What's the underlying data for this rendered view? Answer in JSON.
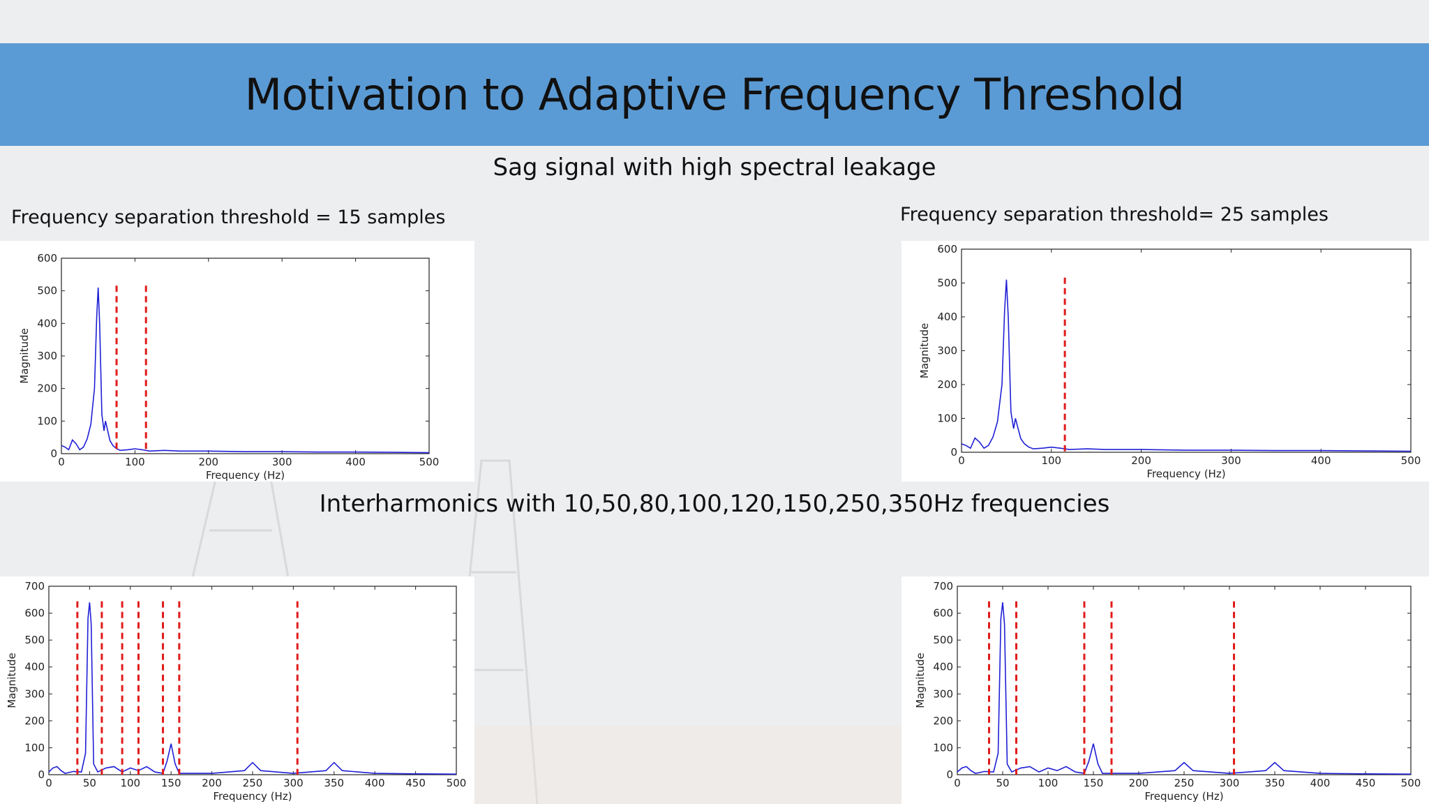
{
  "title": "Motivation to Adaptive Frequency Threshold",
  "section1_heading": "Sag signal with high spectral leakage",
  "section2_heading": "Interharmonics with 10,50,80,100,120,150,250,350Hz frequencies",
  "threshold_left": "Frequency separation threshold = 15 samples",
  "threshold_right": "Frequency separation threshold= 25 samples",
  "colors": {
    "band": "#5b9bd5",
    "spectrum": "#1f1fd6",
    "threshold": "#e01b1b"
  },
  "chart_data": [
    {
      "type": "line",
      "xlabel": "Frequency (Hz)",
      "ylabel": "Magnitude",
      "xlim": [
        0,
        500
      ],
      "ylim": [
        0,
        600
      ],
      "xticks": [
        0,
        100,
        200,
        300,
        400,
        500
      ],
      "yticks": [
        0,
        100,
        200,
        300,
        400,
        500,
        600
      ],
      "grid": false,
      "series": [
        {
          "values": [
            [
              0,
              25
            ],
            [
              5,
              20
            ],
            [
              10,
              12
            ],
            [
              15,
              42
            ],
            [
              20,
              30
            ],
            [
              25,
              12
            ],
            [
              30,
              20
            ],
            [
              35,
              45
            ],
            [
              40,
              90
            ],
            [
              45,
              200
            ],
            [
              48,
              420
            ],
            [
              50,
              510
            ],
            [
              52,
              400
            ],
            [
              55,
              120
            ],
            [
              58,
              70
            ],
            [
              60,
              100
            ],
            [
              63,
              70
            ],
            [
              66,
              40
            ],
            [
              70,
              25
            ],
            [
              75,
              15
            ],
            [
              80,
              10
            ],
            [
              90,
              12
            ],
            [
              100,
              15
            ],
            [
              110,
              12
            ],
            [
              120,
              8
            ],
            [
              140,
              10
            ],
            [
              160,
              8
            ],
            [
              200,
              8
            ],
            [
              250,
              6
            ],
            [
              300,
              6
            ],
            [
              350,
              5
            ],
            [
              400,
              5
            ],
            [
              450,
              4
            ],
            [
              500,
              3
            ]
          ]
        }
      ],
      "thresholds": [
        75,
        115
      ]
    },
    {
      "type": "line",
      "xlabel": "Frequency (Hz)",
      "ylabel": "Magnitude",
      "xlim": [
        0,
        500
      ],
      "ylim": [
        0,
        600
      ],
      "xticks": [
        0,
        100,
        200,
        300,
        400,
        500
      ],
      "yticks": [
        0,
        100,
        200,
        300,
        400,
        500,
        600
      ],
      "grid": false,
      "series": [
        {
          "values": [
            [
              0,
              25
            ],
            [
              5,
              20
            ],
            [
              10,
              12
            ],
            [
              15,
              42
            ],
            [
              20,
              30
            ],
            [
              25,
              12
            ],
            [
              30,
              20
            ],
            [
              35,
              45
            ],
            [
              40,
              90
            ],
            [
              45,
              200
            ],
            [
              48,
              420
            ],
            [
              50,
              510
            ],
            [
              52,
              400
            ],
            [
              55,
              120
            ],
            [
              58,
              70
            ],
            [
              60,
              100
            ],
            [
              63,
              70
            ],
            [
              66,
              40
            ],
            [
              70,
              25
            ],
            [
              75,
              15
            ],
            [
              80,
              10
            ],
            [
              90,
              12
            ],
            [
              100,
              15
            ],
            [
              110,
              12
            ],
            [
              120,
              8
            ],
            [
              140,
              10
            ],
            [
              160,
              8
            ],
            [
              200,
              8
            ],
            [
              250,
              6
            ],
            [
              300,
              6
            ],
            [
              350,
              5
            ],
            [
              400,
              5
            ],
            [
              450,
              4
            ],
            [
              500,
              3
            ]
          ]
        }
      ],
      "thresholds": [
        115
      ]
    },
    {
      "type": "line",
      "xlabel": "Frequency (Hz)",
      "ylabel": "Magnitude",
      "xlim": [
        0,
        500
      ],
      "ylim": [
        0,
        700
      ],
      "xticks": [
        0,
        50,
        100,
        150,
        200,
        250,
        300,
        350,
        400,
        450,
        500
      ],
      "yticks": [
        0,
        100,
        200,
        300,
        400,
        500,
        600,
        700
      ],
      "grid": false,
      "series": [
        {
          "values": [
            [
              0,
              10
            ],
            [
              5,
              25
            ],
            [
              10,
              30
            ],
            [
              15,
              15
            ],
            [
              20,
              5
            ],
            [
              30,
              12
            ],
            [
              40,
              10
            ],
            [
              45,
              80
            ],
            [
              48,
              580
            ],
            [
              50,
              640
            ],
            [
              52,
              560
            ],
            [
              55,
              40
            ],
            [
              60,
              10
            ],
            [
              70,
              25
            ],
            [
              80,
              30
            ],
            [
              90,
              10
            ],
            [
              100,
              25
            ],
            [
              110,
              15
            ],
            [
              120,
              30
            ],
            [
              130,
              10
            ],
            [
              140,
              5
            ],
            [
              145,
              50
            ],
            [
              150,
              115
            ],
            [
              155,
              40
            ],
            [
              160,
              5
            ],
            [
              200,
              5
            ],
            [
              240,
              15
            ],
            [
              250,
              45
            ],
            [
              260,
              15
            ],
            [
              300,
              5
            ],
            [
              340,
              15
            ],
            [
              350,
              45
            ],
            [
              360,
              15
            ],
            [
              400,
              5
            ],
            [
              450,
              3
            ],
            [
              500,
              2
            ]
          ]
        }
      ],
      "thresholds": [
        35,
        65,
        90,
        110,
        140,
        160,
        305
      ]
    },
    {
      "type": "line",
      "xlabel": "Frequency (Hz)",
      "ylabel": "Magnitude",
      "xlim": [
        0,
        500
      ],
      "ylim": [
        0,
        700
      ],
      "xticks": [
        0,
        50,
        100,
        150,
        200,
        250,
        300,
        350,
        400,
        450,
        500
      ],
      "yticks": [
        0,
        100,
        200,
        300,
        400,
        500,
        600,
        700
      ],
      "grid": false,
      "series": [
        {
          "values": [
            [
              0,
              10
            ],
            [
              5,
              25
            ],
            [
              10,
              30
            ],
            [
              15,
              15
            ],
            [
              20,
              5
            ],
            [
              30,
              12
            ],
            [
              40,
              10
            ],
            [
              45,
              80
            ],
            [
              48,
              580
            ],
            [
              50,
              640
            ],
            [
              52,
              560
            ],
            [
              55,
              40
            ],
            [
              60,
              10
            ],
            [
              70,
              25
            ],
            [
              80,
              30
            ],
            [
              90,
              10
            ],
            [
              100,
              25
            ],
            [
              110,
              15
            ],
            [
              120,
              30
            ],
            [
              130,
              10
            ],
            [
              140,
              5
            ],
            [
              145,
              50
            ],
            [
              150,
              115
            ],
            [
              155,
              40
            ],
            [
              160,
              5
            ],
            [
              200,
              5
            ],
            [
              240,
              15
            ],
            [
              250,
              45
            ],
            [
              260,
              15
            ],
            [
              300,
              5
            ],
            [
              340,
              15
            ],
            [
              350,
              45
            ],
            [
              360,
              15
            ],
            [
              400,
              5
            ],
            [
              450,
              3
            ],
            [
              500,
              2
            ]
          ]
        }
      ],
      "thresholds": [
        35,
        65,
        140,
        170,
        305
      ]
    }
  ]
}
